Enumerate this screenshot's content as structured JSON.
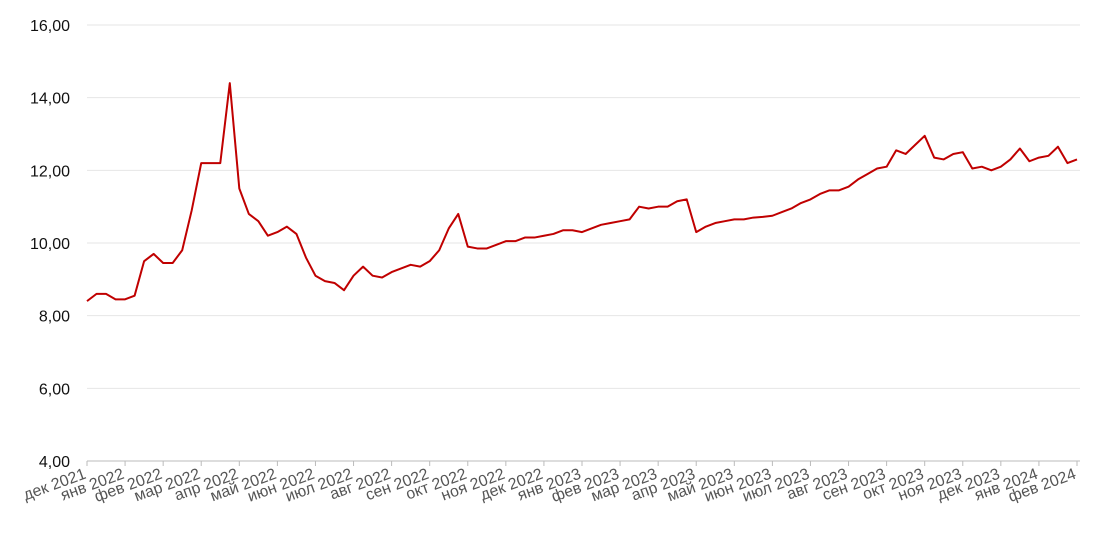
{
  "chart_data": {
    "type": "line",
    "categories": [
      "дек 2021",
      null,
      null,
      null,
      "янв 2022",
      null,
      null,
      null,
      "фев 2022",
      null,
      null,
      null,
      "мар 2022",
      null,
      null,
      null,
      "апр 2022",
      null,
      null,
      null,
      "май 2022",
      null,
      null,
      null,
      "июн 2022",
      null,
      null,
      null,
      "июл 2022",
      null,
      null,
      null,
      "авг 2022",
      null,
      null,
      null,
      "сен 2022",
      null,
      null,
      null,
      "окт 2022",
      null,
      null,
      null,
      "ноя 2022",
      null,
      null,
      null,
      "дек 2022",
      null,
      null,
      null,
      "янв 2023",
      null,
      null,
      null,
      "фев 2023",
      null,
      null,
      null,
      "мар 2023",
      null,
      null,
      null,
      "апр 2023",
      null,
      null,
      null,
      "май 2023",
      null,
      null,
      null,
      "июн 2023",
      null,
      null,
      null,
      "июл 2023",
      null,
      null,
      null,
      "авг 2023",
      null,
      null,
      null,
      "сен 2023",
      null,
      null,
      null,
      "окт 2023",
      null,
      null,
      null,
      "ноя 2023",
      null,
      null,
      null,
      "дек 2023",
      null,
      null,
      null,
      "янв 2024",
      null,
      null,
      null,
      "фев 2024"
    ],
    "values": [
      8.4,
      8.6,
      8.6,
      8.45,
      8.45,
      8.55,
      9.5,
      9.7,
      9.45,
      9.45,
      9.8,
      10.9,
      12.2,
      12.2,
      12.2,
      14.4,
      11.5,
      10.8,
      10.6,
      10.2,
      10.3,
      10.45,
      10.25,
      9.6,
      9.1,
      8.95,
      8.9,
      8.7,
      9.1,
      9.35,
      9.1,
      9.05,
      9.2,
      9.3,
      9.4,
      9.35,
      9.5,
      9.8,
      10.4,
      10.8,
      9.9,
      9.85,
      9.85,
      9.95,
      10.05,
      10.05,
      10.15,
      10.15,
      10.2,
      10.25,
      10.35,
      10.35,
      10.3,
      10.4,
      10.5,
      10.55,
      10.6,
      10.65,
      11.0,
      10.95,
      11.0,
      11.0,
      11.15,
      11.2,
      10.3,
      10.45,
      10.55,
      10.6,
      10.65,
      10.65,
      10.7,
      10.72,
      10.75,
      10.85,
      10.95,
      11.1,
      11.2,
      11.35,
      11.45,
      11.45,
      11.55,
      11.75,
      11.9,
      12.05,
      12.1,
      12.55,
      12.45,
      12.7,
      12.95,
      12.35,
      12.3,
      12.45,
      12.5,
      12.05,
      12.1,
      12.0,
      12.1,
      12.3,
      12.6,
      12.25,
      12.35,
      12.4,
      12.65,
      12.2,
      12.3
    ],
    "color": "#c00000",
    "ylim": [
      4,
      16
    ],
    "yticks": [
      {
        "value": 4,
        "label": "4,00"
      },
      {
        "value": 6,
        "label": "6,00"
      },
      {
        "value": 8,
        "label": "8,00"
      },
      {
        "value": 10,
        "label": "10,00"
      },
      {
        "value": 12,
        "label": "12,00"
      },
      {
        "value": 14,
        "label": "14,00"
      },
      {
        "value": 16,
        "label": "16,00"
      }
    ],
    "grid": true
  }
}
